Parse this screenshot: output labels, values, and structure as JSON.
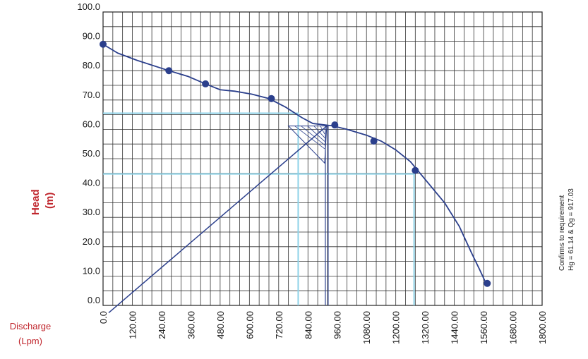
{
  "chart_data": {
    "type": "line",
    "title": "",
    "ylabel": [
      "Head",
      "(m)"
    ],
    "xlabel": [
      "Discharge",
      "(Lpm)"
    ],
    "xlim": [
      0,
      1800
    ],
    "ylim": [
      0,
      100
    ],
    "grid": true,
    "x_ticks": [
      "0.0",
      "120.00",
      "240.00",
      "360.00",
      "480.00",
      "600.00",
      "720.00",
      "840.00",
      "960.00",
      "1080.00",
      "1200.00",
      "1320.00",
      "1440.00",
      "1560.00",
      "1680.00",
      "1800.00"
    ],
    "y_ticks": [
      "0.0",
      "10.0",
      "20.0",
      "30.0",
      "40.0",
      "50.0",
      "60.0",
      "70.0",
      "80.0",
      "90.0",
      "100.0"
    ],
    "series": [
      {
        "type": "curve",
        "color": "#2b3f8c",
        "x": [
          0,
          60,
          140,
          270,
          350,
          420,
          480,
          540,
          610,
          680,
          750,
          815,
          860,
          940,
          1000,
          1080,
          1140,
          1200,
          1260,
          1290,
          1330,
          1400,
          1460,
          1510,
          1545,
          1570
        ],
        "y": [
          89,
          86,
          83.5,
          80,
          78,
          75.5,
          73.5,
          73,
          72,
          70.5,
          67.5,
          64,
          62,
          61.2,
          60,
          58,
          56,
          53,
          49,
          46,
          42,
          35,
          27,
          18,
          12,
          7.5
        ]
      },
      {
        "type": "points",
        "color": "#2b3f8c",
        "x": [
          0,
          270,
          420,
          690,
          950,
          1110,
          1280,
          1575
        ],
        "y": [
          89,
          80,
          75.5,
          70.5,
          61.5,
          56,
          46,
          7.5
        ]
      }
    ],
    "reference_lines": [
      {
        "color": "#8fd3e8",
        "x": [
          0,
          800,
          800
        ],
        "y": [
          65.5,
          65.5,
          0
        ]
      },
      {
        "color": "#8fd3e8",
        "x": [
          0,
          1275,
          1275
        ],
        "y": [
          44.8,
          44.8,
          0
        ]
      }
    ],
    "system_line": {
      "color": "#2b3f8c",
      "x": [
        0,
        917.03
      ],
      "y": [
        -2.5,
        61.14
      ]
    },
    "operating_point_vertical": {
      "color": "#2b3f8c",
      "x": [
        917.03,
        917.03
      ],
      "y": [
        61.14,
        0
      ]
    },
    "tolerance_box": {
      "color": "#2b3f8c",
      "x": [
        760,
        917.03
      ],
      "y": [
        48.5,
        61.14
      ]
    },
    "annotations": [
      "Confirms to requirement",
      "Hg = 61.14 & Qg = 917.03"
    ]
  }
}
